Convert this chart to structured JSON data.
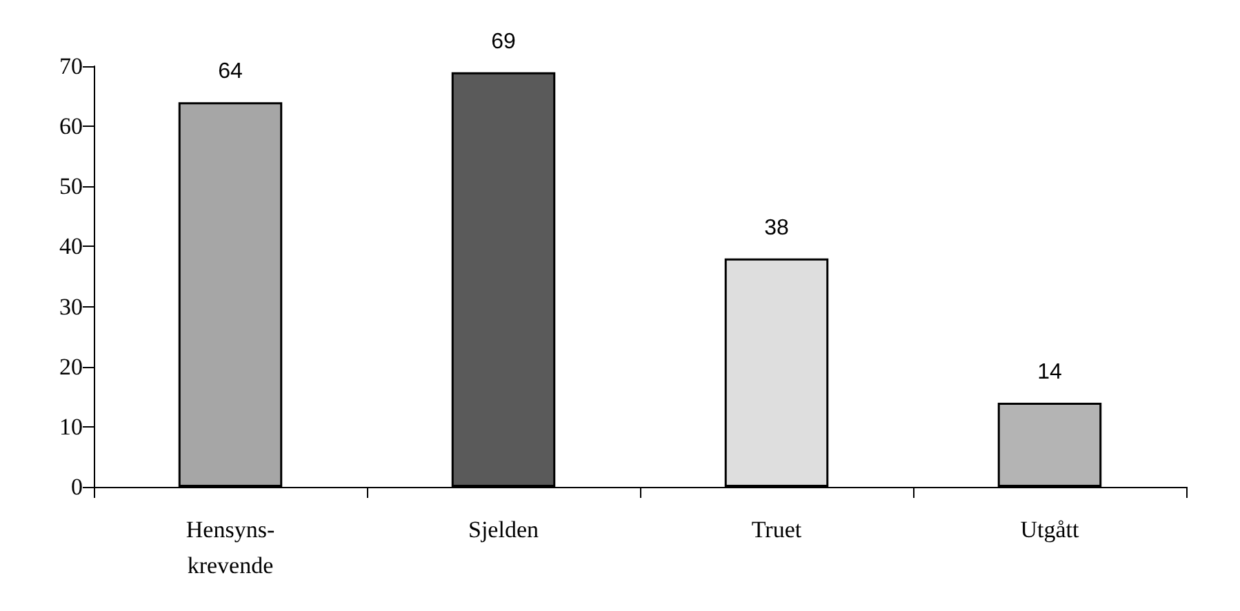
{
  "chart_data": {
    "type": "bar",
    "categories": [
      "Hensyns-\nkrevende",
      "Sjelden",
      "Truet",
      "Utgått"
    ],
    "values": [
      64,
      69,
      38,
      14
    ],
    "colors": [
      "#a6a6a6",
      "#5a5a5a",
      "#dedede",
      "#b4b4b4"
    ],
    "ylim": [
      0,
      70
    ],
    "yticks": [
      0,
      10,
      20,
      30,
      40,
      50,
      60,
      70
    ],
    "grid": false,
    "data_labels": true
  }
}
